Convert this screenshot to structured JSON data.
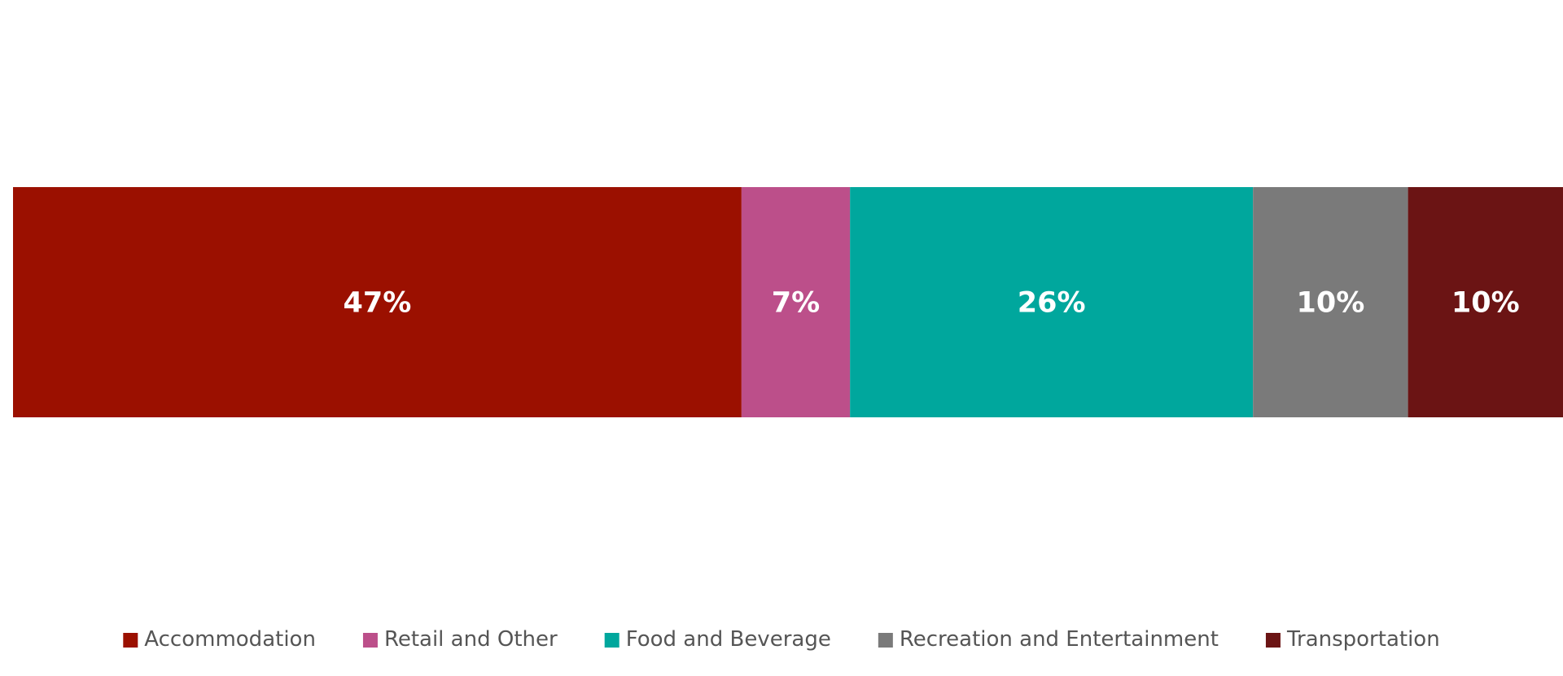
{
  "chart_data": {
    "type": "bar",
    "orientation": "horizontal",
    "stacked": true,
    "percent": true,
    "title": "",
    "xlabel": "",
    "ylabel": "",
    "xlim": [
      0,
      100
    ],
    "grid": false,
    "legend_position": "bottom",
    "series": [
      {
        "name": "Accommodation",
        "value": 47,
        "label": "47%",
        "color": "#9B1000"
      },
      {
        "name": "Retail and Other",
        "value": 7,
        "label": "7%",
        "color": "#BC4F8A"
      },
      {
        "name": "Food and Beverage",
        "value": 26,
        "label": "26%",
        "color": "#00A79D"
      },
      {
        "name": "Recreation and Entertainment",
        "value": 10,
        "label": "10%",
        "color": "#7A7A7A"
      },
      {
        "name": "Transportation",
        "value": 10,
        "label": "10%",
        "color": "#6B1414"
      }
    ]
  }
}
